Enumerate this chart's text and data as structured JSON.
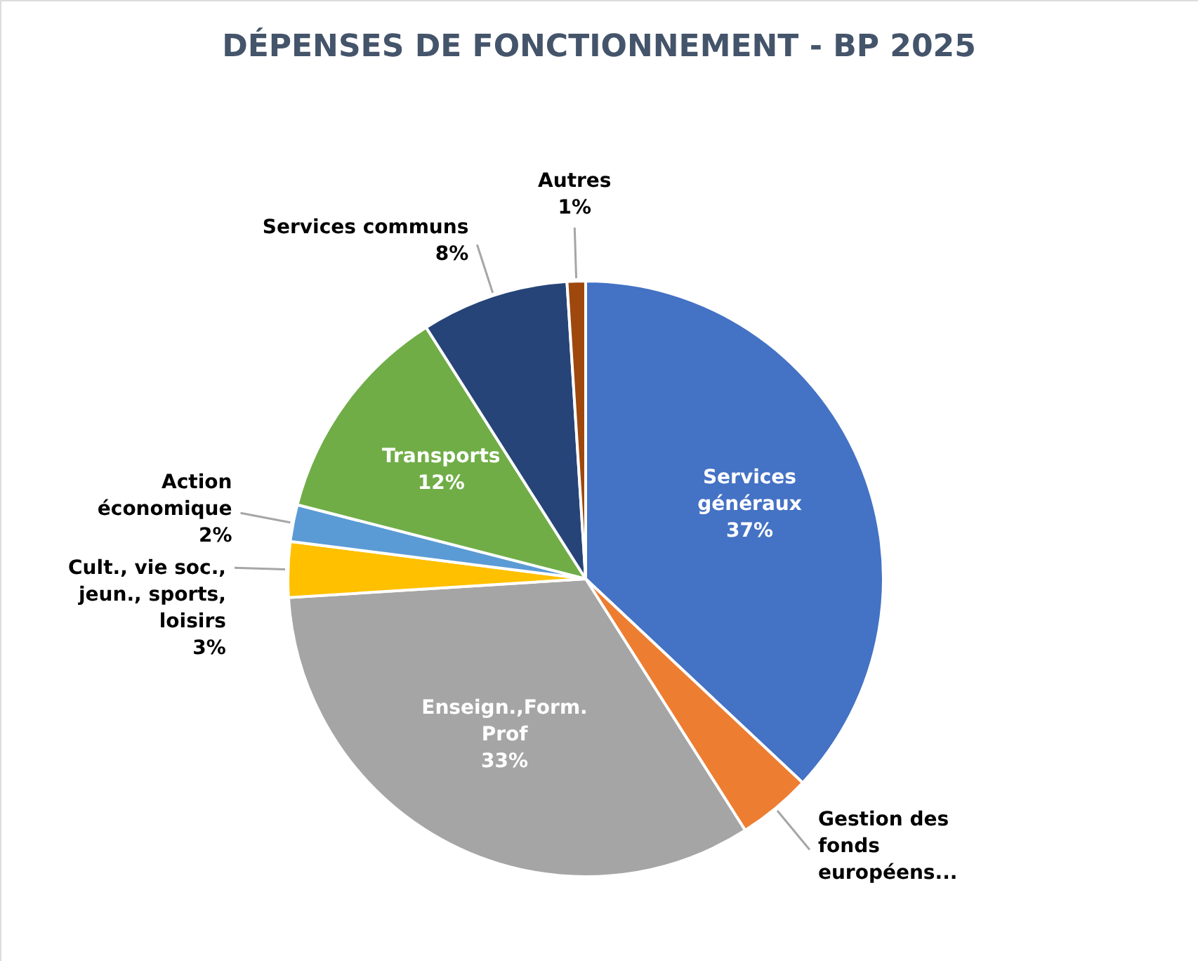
{
  "chart_data": {
    "type": "pie",
    "title": "DÉPENSES DE FONCTIONNEMENT - BP 2025",
    "categories": [
      "Services généraux",
      "Gestion des fonds européens...",
      "Enseign.,Form. Prof",
      "Cult., vie soc., jeun., sports, loisirs",
      "Action économique",
      "Transports",
      "Services communs",
      "Autres"
    ],
    "values": [
      37,
      4,
      33,
      3,
      2,
      12,
      8,
      1
    ],
    "value_labels": [
      "37%",
      null,
      "33%",
      "3%",
      "2%",
      "12%",
      "8%",
      "1%"
    ],
    "colors": [
      "#4472c4",
      "#ed7d31",
      "#a5a5a5",
      "#ffc000",
      "#5b9bd5",
      "#70ad47",
      "#264478",
      "#9e480e"
    ]
  }
}
